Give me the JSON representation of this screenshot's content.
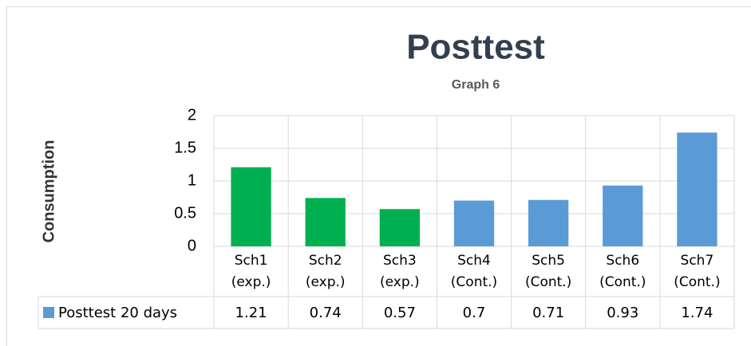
{
  "chart_data": {
    "type": "bar",
    "title": "Posttest",
    "subtitle": "Graph 6",
    "y_label": "Consumption",
    "categories": [
      "Sch1 (exp.)",
      "Sch2 (exp.)",
      "Sch3 (exp.)",
      "Sch4 (Cont.)",
      "Sch5 (Cont.)",
      "Sch6 (Cont.)",
      "Sch7 (Cont.)"
    ],
    "series": [
      {
        "name": "Posttest 20 days",
        "color": "#5b9bd5",
        "point_colors": [
          "#00b050",
          "#00b050",
          "#00b050",
          "#5b9bd5",
          "#5b9bd5",
          "#5b9bd5",
          "#5b9bd5"
        ],
        "values": [
          1.21,
          0.74,
          0.57,
          0.7,
          0.71,
          0.93,
          1.74
        ]
      }
    ],
    "ylim": [
      0,
      2
    ],
    "yticks": [
      0,
      0.5,
      1,
      1.5,
      2
    ],
    "grid": true,
    "data_table": true
  }
}
